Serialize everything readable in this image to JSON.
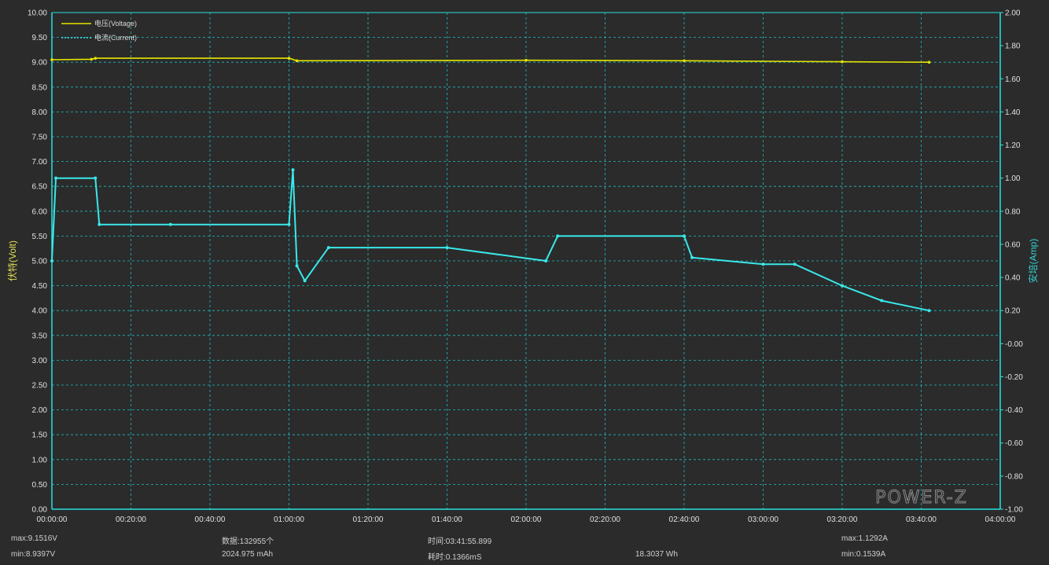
{
  "chart_data": {
    "type": "line",
    "xlabel": "",
    "ylabel": "伏特(Volt)",
    "y2label": "安培(Amp)",
    "xlim": [
      0,
      240
    ],
    "ylim": [
      0,
      10
    ],
    "y2lim": [
      -1,
      2
    ],
    "x_ticks": [
      "00:00:00",
      "00:20:00",
      "00:40:00",
      "01:00:00",
      "01:20:00",
      "01:40:00",
      "02:00:00",
      "02:20:00",
      "02:40:00",
      "03:00:00",
      "03:20:00",
      "03:40:00",
      "04:00:00"
    ],
    "y_ticks": [
      "0.00",
      "0.50",
      "1.00",
      "1.50",
      "2.00",
      "2.50",
      "3.00",
      "3.50",
      "4.00",
      "4.50",
      "5.00",
      "5.50",
      "6.00",
      "6.50",
      "7.00",
      "7.50",
      "8.00",
      "8.50",
      "9.00",
      "9.50",
      "10.00"
    ],
    "y2_ticks": [
      "-1.00",
      "-0.80",
      "-0.60",
      "-0.40",
      "-0.20",
      "-0.00",
      "0.20",
      "0.40",
      "0.60",
      "0.80",
      "1.00",
      "1.20",
      "1.40",
      "1.60",
      "1.80",
      "2.00"
    ],
    "legend": [
      "电压(Voltage)",
      "电流(Current)"
    ],
    "legend_position": "top-left",
    "grid": true,
    "series": [
      {
        "name": "电压(Voltage)",
        "axis": "left",
        "color": "#e6e600",
        "x": [
          0,
          10,
          11,
          60,
          62,
          120,
          160,
          200,
          222
        ],
        "y": [
          9.05,
          9.06,
          9.08,
          9.08,
          9.03,
          9.04,
          9.03,
          9.01,
          9.0
        ]
      },
      {
        "name": "电流(Current)",
        "axis": "right",
        "color": "#39e8ea",
        "x": [
          0,
          1,
          11,
          12,
          30,
          60,
          61,
          62,
          64,
          70,
          100,
          125,
          128,
          160,
          162,
          180,
          188,
          200,
          210,
          222
        ],
        "y": [
          0.5,
          1.0,
          1.0,
          0.72,
          0.72,
          0.72,
          1.05,
          0.47,
          0.38,
          0.58,
          0.58,
          0.5,
          0.65,
          0.65,
          0.52,
          0.48,
          0.48,
          0.35,
          0.26,
          0.2
        ]
      }
    ]
  },
  "stats": {
    "vmax": "max:9.1516V",
    "vmin": "min:8.9397V",
    "count": "数据:132955个",
    "capacity": "2024.975 mAh",
    "time": "时间:03:41:55.899",
    "elapsed": "耗时:0.1366mS",
    "energy": "18.3037 Wh",
    "amax": "max:1.1292A",
    "amin": "min:0.1539A"
  },
  "watermark": "POWER-Z",
  "colors": {
    "background": "#2b2b2b",
    "axis": "#29e0e0",
    "grid": "#1fbcbf",
    "voltage": "#e6e600",
    "current": "#39e8ea",
    "left_label": "#dede55",
    "right_label": "#35d0d3"
  }
}
